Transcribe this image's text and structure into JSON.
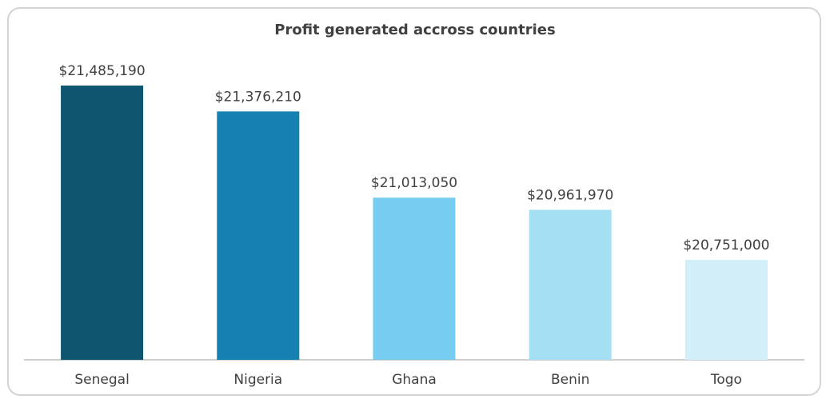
{
  "chart_data": {
    "type": "bar",
    "title": "Profit generated accross countries",
    "categories": [
      "Senegal",
      "Nigeria",
      "Ghana",
      "Benin",
      "Togo"
    ],
    "values": [
      21485190,
      21376210,
      21013050,
      20961970,
      20751000
    ],
    "value_labels": [
      "$21,485,190",
      "$21,376,210",
      "$21,013,050",
      "$20,961,970",
      "$20,751,000"
    ],
    "bar_colors": [
      "#0e566f",
      "#1581b0",
      "#77cdf0",
      "#a5dff3",
      "#d2eef9"
    ],
    "ylim": [
      20330000,
      21485190
    ],
    "axis_color": "#bfbfbf",
    "grid": false,
    "legend": "none"
  }
}
